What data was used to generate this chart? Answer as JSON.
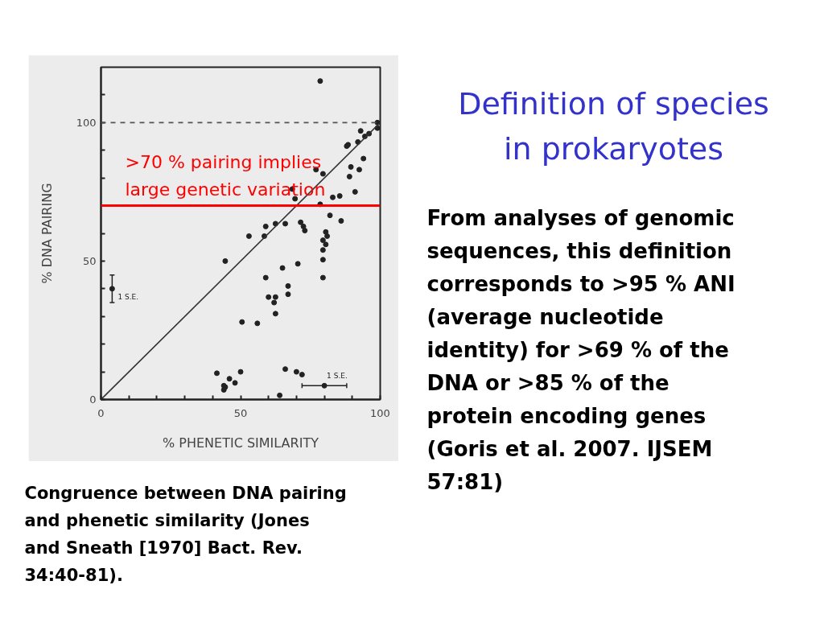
{
  "chart_data": {
    "type": "scatter",
    "title": "Definition of species in prokaryotes",
    "xlabel": "% PHENETIC SIMILARITY",
    "ylabel": "% DNA PAIRING",
    "xlim": [
      0,
      100
    ],
    "ylim": [
      0,
      120
    ],
    "xticks": [
      0,
      {
        "value": 10,
        "label": null
      },
      {
        "value": 20,
        "label": null
      },
      {
        "value": 30,
        "label": null
      },
      {
        "value": 40,
        "label": null
      },
      50,
      {
        "value": 60,
        "label": null
      },
      {
        "value": 70,
        "label": null
      },
      {
        "value": 80,
        "label": null
      },
      {
        "value": 90,
        "label": null
      },
      100
    ],
    "yticks": [
      0,
      {
        "value": 10,
        "label": null
      },
      {
        "value": 20,
        "label": null
      },
      {
        "value": 30,
        "label": null
      },
      {
        "value": 40,
        "label": null
      },
      50,
      {
        "value": 60,
        "label": null
      },
      {
        "value": 70,
        "label": null
      },
      {
        "value": 80,
        "label": null
      },
      {
        "value": 90,
        "label": null
      },
      100,
      {
        "value": 110,
        "label": null
      }
    ],
    "marker": "circle",
    "series": [
      {
        "color": "#222222",
        "x": [
          78.5,
          99,
          99,
          93,
          96,
          94.5,
          92,
          88,
          88.5,
          94,
          89.5,
          92.5,
          77,
          79.5,
          89,
          68.5,
          83,
          85.5,
          91,
          69.5,
          78.5,
          82,
          86,
          71.5,
          72.5,
          73,
          66,
          62.5,
          59,
          58.5,
          53,
          80.5,
          81,
          79.5,
          80.5,
          79.5,
          79.5,
          65,
          70.5,
          59,
          79.5,
          67,
          67,
          60,
          62.5,
          62,
          62.5,
          56,
          50.5,
          44.5,
          66,
          70,
          72,
          64,
          41.5,
          50,
          46,
          48,
          44,
          44.5,
          44
        ],
        "values": [
          115,
          100,
          98,
          97,
          96,
          95,
          93,
          91.5,
          92,
          87,
          84,
          83,
          83,
          81.5,
          80.5,
          76,
          73,
          73.5,
          75,
          72.5,
          70.5,
          66.5,
          64.5,
          64,
          62.5,
          61,
          63.5,
          63.5,
          62.5,
          59,
          59,
          60.5,
          59,
          57.5,
          56,
          54,
          50.5,
          47.5,
          49,
          44,
          44,
          41,
          38,
          37,
          37,
          35,
          31,
          27.5,
          28,
          50,
          11,
          10,
          9,
          1.5,
          9.5,
          10,
          7.5,
          6,
          5,
          4.5,
          3.5
        ]
      },
      {
        "type": "line",
        "marker": "none",
        "color": "#333333",
        "x": [
          0,
          100
        ],
        "values": [
          0,
          100
        ]
      },
      {
        "name": "1 S.E.",
        "color": "#222222",
        "x": [
          4
        ],
        "values": [
          40
        ],
        "errors": [
          5
        ]
      },
      {
        "name": "1 S.E.",
        "color": "#222222",
        "x": [
          80
        ],
        "values": [
          5
        ],
        "xerrors": [
          8
        ]
      }
    ],
    "ref_lines": [
      {
        "axis": "y",
        "value": 100,
        "color": "#555555",
        "line_style": "dashed"
      },
      {
        "axis": "y",
        "value": 70,
        "color": "#ff0000",
        "label": ">70 % pairing implies\nlarge genetic variation"
      }
    ],
    "annotations": [
      "From analyses of genomic sequences, this definition corresponds to >95 % ANI (average nucleotide identity) for >69 % of the DNA or >85 % of the protein encoding genes (Goris et al. 2007. IJSEM 57:81)",
      "Congruence between DNA pairing and phenetic similarity (Jones and Sneath [1970] Bact. Rev. 34:40-81)."
    ]
  }
}
